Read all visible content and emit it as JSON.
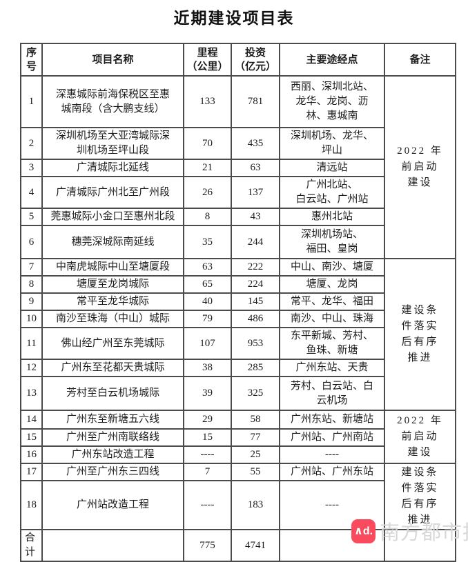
{
  "title": "近期建设项目表",
  "table": {
    "headers": {
      "no": "序号",
      "name": "项目名称",
      "mileage": "里程\n（公里）",
      "investment": "投资\n（亿元）",
      "via": "主要途经点",
      "remark": "备注"
    },
    "rows": [
      {
        "no": "1",
        "name": "深惠城际前海保税区至惠\n城南段（含大鹏支线）",
        "mileage": "133",
        "investment": "781",
        "via": "西丽、深圳北站、\n龙华、龙岗、沥\n林、惠城南",
        "remark": "2022 年\n前启动\n建设",
        "remark_span": 6
      },
      {
        "no": "2",
        "name": "深圳机场至大亚湾城际深\n圳机场至坪山段",
        "mileage": "70",
        "investment": "435",
        "via": "深圳机场、龙华、\n坪山"
      },
      {
        "no": "3",
        "name": "广清城际北延线",
        "mileage": "21",
        "investment": "63",
        "via": "清远站"
      },
      {
        "no": "4",
        "name": "广清城际广州北至广州段",
        "mileage": "26",
        "investment": "137",
        "via": "广州北站、\n白云站、广州站"
      },
      {
        "no": "5",
        "name": "莞惠城际小金口至惠州北段",
        "mileage": "8",
        "investment": "43",
        "via": "惠州北站"
      },
      {
        "no": "6",
        "name": "穗莞深城际南延线",
        "mileage": "35",
        "investment": "244",
        "via": "深圳机场站、\n福田、皇岗"
      },
      {
        "no": "7",
        "name": "中南虎城际中山至塘厦段",
        "mileage": "63",
        "investment": "222",
        "via": "中山、南沙、塘厦",
        "remark": "建设条\n件落实\n后有序\n推进",
        "remark_span": 7
      },
      {
        "no": "8",
        "name": "塘厦至龙岗城际",
        "mileage": "65",
        "investment": "224",
        "via": "塘厦、龙岗"
      },
      {
        "no": "9",
        "name": "常平至龙华城际",
        "mileage": "40",
        "investment": "145",
        "via": "常平、龙华、福田"
      },
      {
        "no": "10",
        "name": "南沙至珠海（中山）城际",
        "mileage": "79",
        "investment": "486",
        "via": "南沙、中山、珠海"
      },
      {
        "no": "11",
        "name": "佛山经广州至东莞城际",
        "mileage": "107",
        "investment": "953",
        "via": "东平新城、芳村、\n鱼珠、新塘"
      },
      {
        "no": "12",
        "name": "广州东至花都天贵城际",
        "mileage": "38",
        "investment": "285",
        "via": "广州东站、天贵"
      },
      {
        "no": "13",
        "name": "芳村至白云机场城际",
        "mileage": "39",
        "investment": "325",
        "via": "芳村、白云站、白\n云机场"
      },
      {
        "no": "14",
        "name": "广州东至新塘五六线",
        "mileage": "29",
        "investment": "58",
        "via": "广州东站、新塘站",
        "remark": "2022 年\n前启动\n建设",
        "remark_span": 3
      },
      {
        "no": "15",
        "name": "广州至广州南联络线",
        "mileage": "15",
        "investment": "77",
        "via": "广州站、广州南站"
      },
      {
        "no": "16",
        "name": "广州东站改造工程",
        "mileage": "----",
        "investment": "25",
        "via": "----"
      },
      {
        "no": "17",
        "name": "广州至广州东三四线",
        "mileage": "7",
        "investment": "55",
        "via": "广州站、广州东站",
        "remark": "建设条\n件落实\n后有序\n推进",
        "remark_span": 2
      },
      {
        "no": "18",
        "name": "广州站改造工程",
        "mileage": "----",
        "investment": "183",
        "via": "----"
      }
    ],
    "total": {
      "label": "合计",
      "name": "",
      "mileage": "775",
      "investment": "4741",
      "via": "",
      "remark": ""
    }
  },
  "watermark": {
    "logo_text": "∧d.",
    "logo_color": "#fa4a5e",
    "brand": "南方都市报"
  }
}
